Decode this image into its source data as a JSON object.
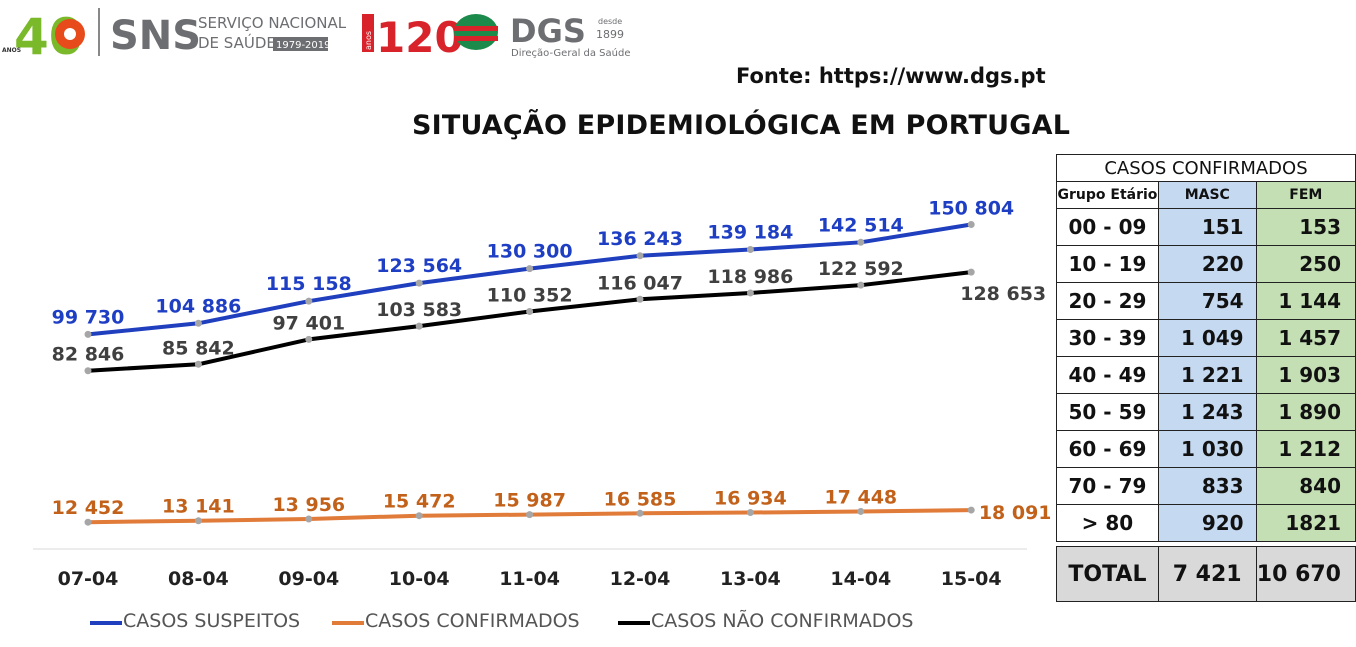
{
  "logos": {
    "sns_anos": "ANOS",
    "sns_40": "40",
    "sns_name": "SNS",
    "sns_line1": "SERVIÇO NACIONAL",
    "sns_line2": "DE SAÚDE",
    "sns_years": "1979-2019",
    "dgs_anos": "anos",
    "dgs_120": "120",
    "dgs_name": "DGS",
    "dgs_desde": "desde",
    "dgs_year": "1899",
    "dgs_full": "Direção-Geral da Saúde"
  },
  "source": "Fonte: https://www.dgs.pt",
  "colors": {
    "suspected": "#1f3fbf",
    "confirmed": "#e07b39",
    "unconfirmed": "#000000",
    "suspected_label": "#1e3fc3",
    "confirmed_label": "#c2611a",
    "unconfirmed_label": "#404040"
  },
  "chart_data": {
    "type": "line",
    "title": "SITUAÇÃO EPIDEMIOLÓGICA EM PORTUGAL",
    "categories": [
      "07-04",
      "08-04",
      "09-04",
      "10-04",
      "11-04",
      "12-04",
      "13-04",
      "14-04",
      "15-04"
    ],
    "ylim": [
      0,
      160000
    ],
    "grid": false,
    "legend_position": "bottom",
    "series": [
      {
        "name": "CASOS SUSPEITOS",
        "key": "suspected",
        "values": [
          99730,
          104886,
          115158,
          123564,
          130300,
          136243,
          139184,
          142514,
          150804
        ],
        "labels": [
          "99 730",
          "104 886",
          "115 158",
          "123 564",
          "130 300",
          "136 243",
          "139 184",
          "142 514",
          "150 804"
        ]
      },
      {
        "name": "CASOS CONFIRMADOS",
        "key": "confirmed",
        "values": [
          12452,
          13141,
          13956,
          15472,
          15987,
          16585,
          16934,
          17448,
          18091
        ],
        "labels": [
          "12 452",
          "13 141",
          "13 956",
          "15 472",
          "15 987",
          "16 585",
          "16 934",
          "17 448",
          "18 091"
        ]
      },
      {
        "name": "CASOS NÃO CONFIRMADOS",
        "key": "unconfirmed",
        "values": [
          82846,
          85842,
          97401,
          103583,
          110352,
          116047,
          118986,
          122592,
          128653
        ],
        "labels": [
          "82 846",
          "85 842",
          "97 401",
          "103 583",
          "110 352",
          "116 047",
          "118 986",
          "122 592",
          "128 653"
        ]
      }
    ]
  },
  "table": {
    "title": "CASOS CONFIRMADOS",
    "headers": [
      "Grupo Etário",
      "MASC",
      "FEM"
    ],
    "rows": [
      {
        "age": "00 - 09",
        "masc": "151",
        "fem": "153"
      },
      {
        "age": "10 - 19",
        "masc": "220",
        "fem": "250"
      },
      {
        "age": "20 - 29",
        "masc": "754",
        "fem": "1 144"
      },
      {
        "age": "30 - 39",
        "masc": "1 049",
        "fem": "1 457"
      },
      {
        "age": "40 - 49",
        "masc": "1 221",
        "fem": "1 903"
      },
      {
        "age": "50 - 59",
        "masc": "1 243",
        "fem": "1 890"
      },
      {
        "age": "60 - 69",
        "masc": "1 030",
        "fem": "1 212"
      },
      {
        "age": "70 - 79",
        "masc": "833",
        "fem": "840"
      },
      {
        "age": "> 80",
        "masc": "920",
        "fem": "1821"
      }
    ],
    "total": {
      "label": "TOTAL",
      "masc": "7 421",
      "fem": "10 670"
    }
  }
}
